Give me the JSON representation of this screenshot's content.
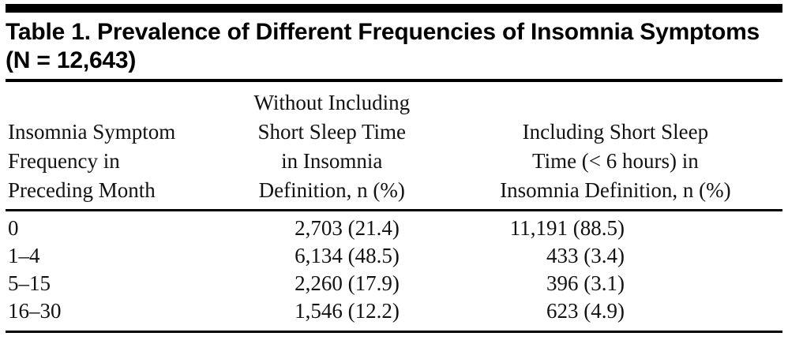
{
  "table": {
    "title": "Table 1. Prevalence of Different Frequencies of Insomnia Symptoms (N = 12,643)",
    "columns": [
      {
        "header": "Insomnia Symptom\nFrequency in\nPreceding Month"
      },
      {
        "header": "Without Including\nShort Sleep Time\nin Insomnia\nDefinition, n (%)"
      },
      {
        "header": "Including Short Sleep\nTime (< 6 hours) in\nInsomnia Definition, n (%)"
      }
    ],
    "rows": [
      {
        "frequency": "0",
        "without": "2,703 (21.4)",
        "including": "11,191 (88.5)"
      },
      {
        "frequency": "1–4",
        "without": "6,134 (48.5)",
        "including": "433 (3.4)"
      },
      {
        "frequency": "5–15",
        "without": "2,260 (17.9)",
        "including": "396 (3.1)"
      },
      {
        "frequency": "16–30",
        "without": "1,546 (12.2)",
        "including": "623 (4.9)"
      }
    ]
  }
}
